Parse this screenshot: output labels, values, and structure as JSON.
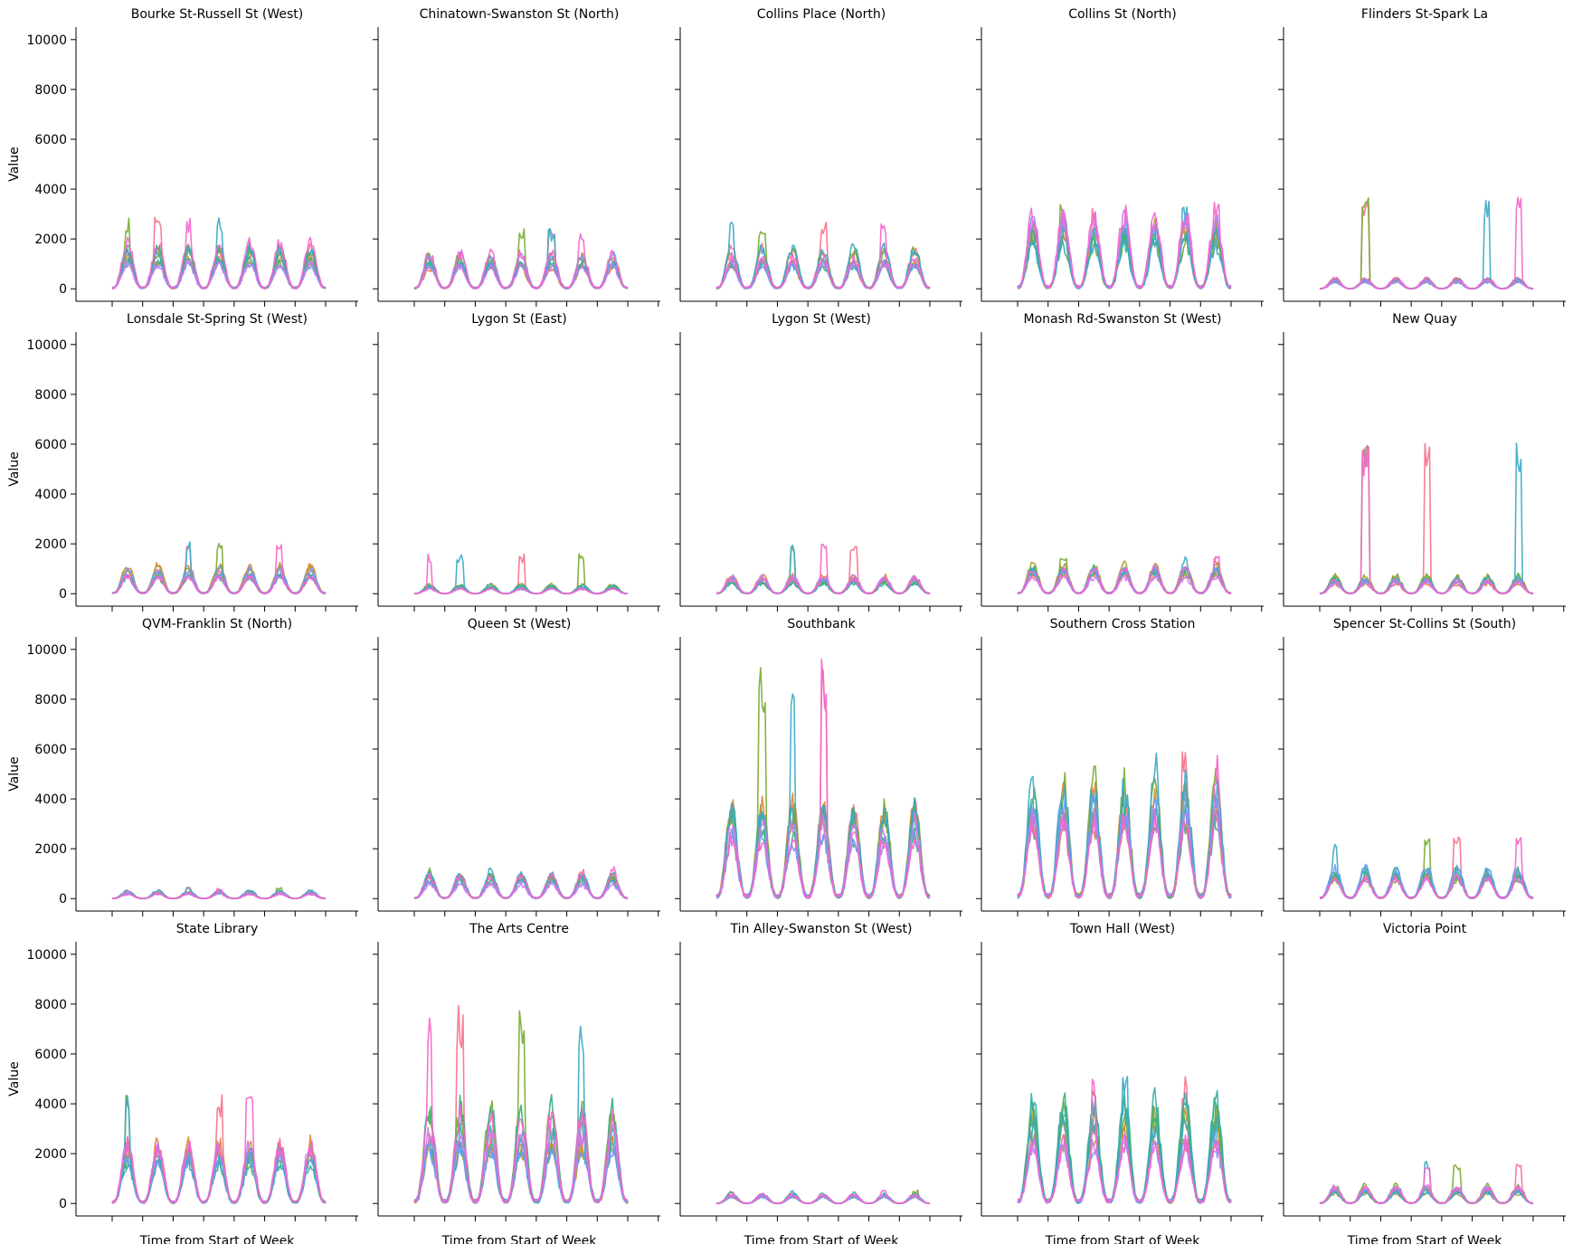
{
  "figure": {
    "colors": {
      "axis": "#000000",
      "palette": [
        "#f77189",
        "#e18432",
        "#ae9d31",
        "#77ab31",
        "#33b07a",
        "#36ada4",
        "#38a9c5",
        "#6e9bf4",
        "#cc7af4",
        "#f565cc"
      ]
    }
  },
  "chart_data": {
    "type": "line",
    "layout": "facet-grid",
    "rows": 4,
    "cols": 5,
    "shared_y": true,
    "ylim": [
      -500,
      10500
    ],
    "y_ticks": [
      0,
      2000,
      4000,
      6000,
      8000,
      10000
    ],
    "x_tick_count": 8,
    "xlabel": "Time from Start of Week",
    "ylabel": "Value",
    "panels": [
      {
        "title": "Bourke St-Russell St (West)",
        "peak": 2000,
        "max": 2900
      },
      {
        "title": "Chinatown-Swanston St (North)",
        "peak": 1700,
        "max": 2500
      },
      {
        "title": "Collins Place (North)",
        "peak": 1900,
        "max": 2800
      },
      {
        "title": "Collins St (North)",
        "peak": 3400,
        "max": 3500
      },
      {
        "title": "Flinders St-Spark La",
        "peak": 500,
        "max": 3700
      },
      {
        "title": "Lonsdale St-Spring St (West)",
        "peak": 1300,
        "max": 2100
      },
      {
        "title": "Lygon St (East)",
        "peak": 400,
        "max": 1600
      },
      {
        "title": "Lygon St (West)",
        "peak": 800,
        "max": 2200
      },
      {
        "title": "Monash Rd-Swanston St (West)",
        "peak": 1300,
        "max": 1500
      },
      {
        "title": "New Quay",
        "peak": 800,
        "max": 6100
      },
      {
        "title": "QVM-Franklin St (North)",
        "peak": 350,
        "max": 450
      },
      {
        "title": "Queen St (West)",
        "peak": 1100,
        "max": 1300
      },
      {
        "title": "Southbank",
        "peak": 4500,
        "max": 9900
      },
      {
        "title": "Southern Cross Station",
        "peak": 5200,
        "max": 5900
      },
      {
        "title": "Spencer St-Collins St (South)",
        "peak": 1500,
        "max": 2500
      },
      {
        "title": "State Library",
        "peak": 2600,
        "max": 4600
      },
      {
        "title": "The Arts Centre",
        "peak": 4200,
        "max": 8000
      },
      {
        "title": "Tin Alley-Swanston St (West)",
        "peak": 450,
        "max": 550
      },
      {
        "title": "Town Hall (West)",
        "peak": 4500,
        "max": 5300
      },
      {
        "title": "Victoria Point",
        "peak": 800,
        "max": 1700
      }
    ]
  }
}
